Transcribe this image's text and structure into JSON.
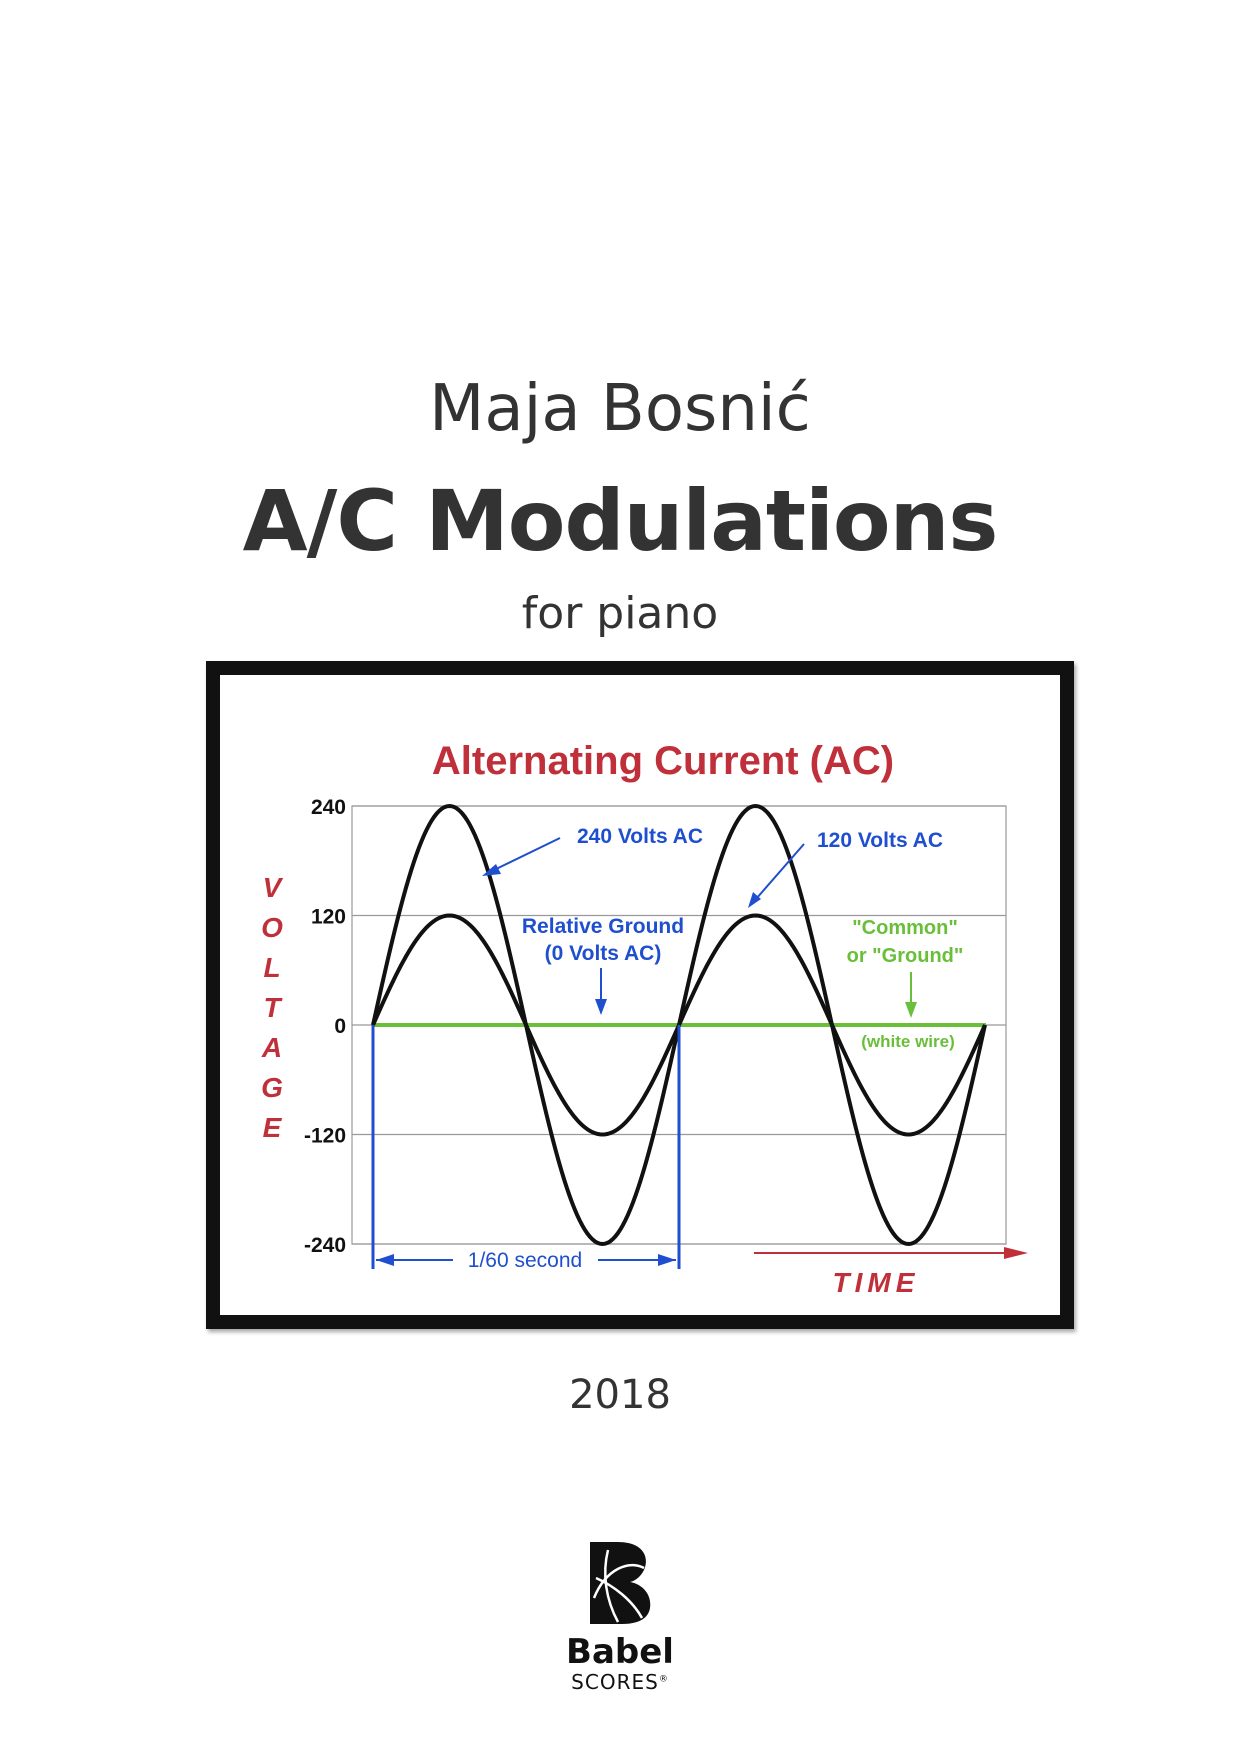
{
  "cover": {
    "composer": "Maja Bosnić",
    "title": "A/C Modulations",
    "subtitle": "for piano",
    "year": "2018"
  },
  "publisher": {
    "name": "Babel",
    "sub": "SCORES",
    "mark": "®"
  },
  "colors": {
    "text": "#333333",
    "chart_title": "#c0303a",
    "annotation_blue": "#1f4fcf",
    "ground_green": "#6abf3a",
    "waves": "#111111"
  },
  "chart_data": {
    "type": "line",
    "title": "Alternating Current (AC)",
    "ylabel": "VOLTAGE",
    "xlabel": "TIME",
    "ylim": [
      -240,
      240
    ],
    "yticks": [
      240,
      120,
      0,
      -120,
      -240
    ],
    "ytick_labels": [
      "240",
      "120",
      "0",
      "-120",
      "-240"
    ],
    "grid": true,
    "x_cycles": [
      0,
      2
    ],
    "series": [
      {
        "name": "240 Volts AC",
        "amplitude": 240,
        "cycles": 2
      },
      {
        "name": "120 Volts AC",
        "amplitude": 120,
        "cycles": 2
      },
      {
        "name": "\"Common\" or \"Ground\"",
        "amplitude": 0,
        "cycles": 2
      }
    ],
    "annotations": {
      "a240": "240 Volts AC",
      "a120": "120 Volts AC",
      "rel_ground_1": "Relative Ground",
      "rel_ground_2": "(0 Volts AC)",
      "common_1": "\"Common\"",
      "common_2": "or \"Ground\"",
      "white_wire": "(white wire)",
      "period": "1/60 second"
    }
  }
}
